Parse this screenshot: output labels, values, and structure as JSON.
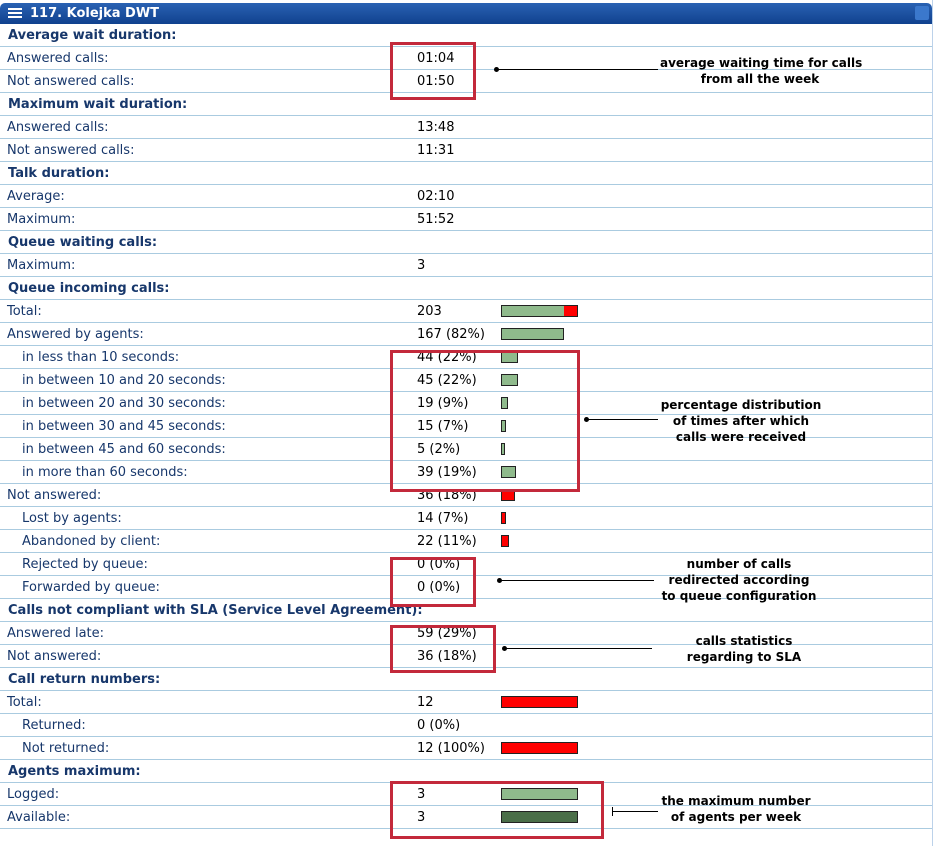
{
  "title": "117. Kolejka DWT",
  "icons": {
    "menu": "list-menu-icon"
  },
  "colors": {
    "title_bg": "#1c4f9f",
    "bar_green": "#8fba8c",
    "bar_red": "#ff0000",
    "bar_dark_green": "#4a6e48",
    "highlight": "#c3293b",
    "row_text": "#17376b"
  },
  "rows": [
    {
      "label": "Average wait duration:",
      "type": "section"
    },
    {
      "label": "Answered calls:",
      "value": "01:04"
    },
    {
      "label": "Not answered calls:",
      "value": "01:50"
    },
    {
      "label": "Maximum wait duration:",
      "type": "section"
    },
    {
      "label": "Answered calls:",
      "value": "13:48"
    },
    {
      "label": "Not answered calls:",
      "value": "11:31"
    },
    {
      "label": "Talk duration:",
      "type": "section"
    },
    {
      "label": "Average:",
      "value": "02:10"
    },
    {
      "label": "Maximum:",
      "value": "51:52"
    },
    {
      "label": "Queue waiting calls:",
      "type": "section"
    },
    {
      "label": "Maximum:",
      "value": "3"
    },
    {
      "label": "Queue incoming calls:",
      "type": "section"
    },
    {
      "label": "Total:",
      "value": "203",
      "bar": {
        "green": 0.82,
        "red": 0.18
      }
    },
    {
      "label": "Answered by agents:",
      "value": "167 (82%)",
      "bar": {
        "green": 0.82
      }
    },
    {
      "label": "in less than 10 seconds:",
      "value": "44 (22%)",
      "indent": true,
      "bar": {
        "green": 0.22
      }
    },
    {
      "label": "in between 10 and 20 seconds:",
      "value": "45 (22%)",
      "indent": true,
      "bar": {
        "green": 0.22
      }
    },
    {
      "label": "in between 20 and 30 seconds:",
      "value": "19 (9%)",
      "indent": true,
      "bar": {
        "green": 0.09
      }
    },
    {
      "label": "in between 30 and 45 seconds:",
      "value": "15 (7%)",
      "indent": true,
      "bar": {
        "green": 0.07
      }
    },
    {
      "label": "in between 45 and 60 seconds:",
      "value": "5 (2%)",
      "indent": true,
      "bar": {
        "green": 0.02
      }
    },
    {
      "label": "in more than 60 seconds:",
      "value": "39 (19%)",
      "indent": true,
      "bar": {
        "green": 0.19
      }
    },
    {
      "label": "Not answered:",
      "value": "36 (18%)",
      "bar": {
        "red": 0.18
      }
    },
    {
      "label": "Lost by agents:",
      "value": "14 (7%)",
      "indent": true,
      "bar": {
        "red": 0.07
      }
    },
    {
      "label": "Abandoned by client:",
      "value": "22 (11%)",
      "indent": true,
      "bar": {
        "red": 0.11
      }
    },
    {
      "label": "Rejected by queue:",
      "value": "0 (0%)",
      "indent": true
    },
    {
      "label": "Forwarded by queue:",
      "value": "0 (0%)",
      "indent": true
    },
    {
      "label": "Calls not compliant with SLA (Service Level Agreement):",
      "type": "section"
    },
    {
      "label": "Answered late:",
      "value": "59 (29%)"
    },
    {
      "label": "Not answered:",
      "value": "36 (18%)"
    },
    {
      "label": "Call return numbers:",
      "type": "section"
    },
    {
      "label": "Total:",
      "value": "12",
      "bar": {
        "red": 1.0
      }
    },
    {
      "label": "Returned:",
      "value": "0 (0%)",
      "indent": true
    },
    {
      "label": "Not returned:",
      "value": "12 (100%)",
      "indent": true,
      "bar": {
        "red": 1.0
      }
    },
    {
      "label": "Agents maximum:",
      "type": "section"
    },
    {
      "label": "Logged:",
      "value": "3",
      "bar": {
        "green": 1.0
      }
    },
    {
      "label": "Available:",
      "value": "3",
      "bar": {
        "dark": 1.0
      }
    }
  ],
  "annotations": [
    {
      "lines": [
        "average waiting time for calls",
        "from all the week"
      ]
    },
    {
      "lines": [
        "percentage distribution",
        "of times after which",
        "calls were received"
      ]
    },
    {
      "lines": [
        "number of calls",
        "redirected according",
        "to queue configuration"
      ]
    },
    {
      "lines": [
        "calls statistics",
        "regarding to SLA"
      ]
    },
    {
      "lines": [
        "the maximum number",
        "of agents per week"
      ]
    }
  ]
}
